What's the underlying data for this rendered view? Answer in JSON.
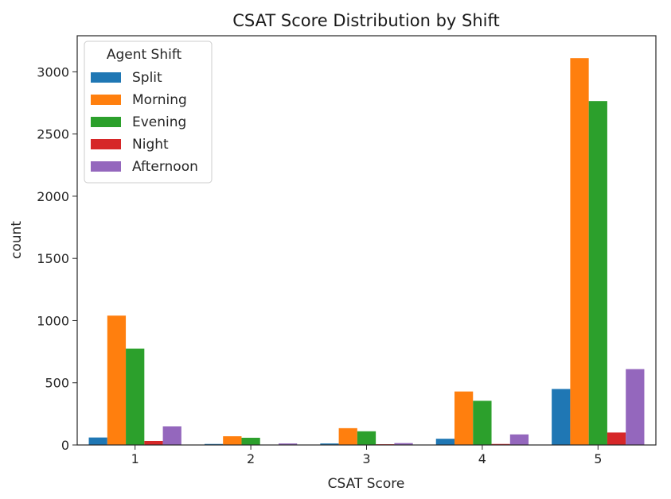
{
  "chart_data": {
    "type": "bar",
    "title": "CSAT Score Distribution by Shift",
    "xlabel": "CSAT Score",
    "ylabel": "count",
    "categories": [
      "1",
      "2",
      "3",
      "4",
      "5"
    ],
    "y_ticks": [
      "0",
      "500",
      "1000",
      "1500",
      "2000",
      "2500",
      "3000"
    ],
    "ylim": [
      0,
      3290
    ],
    "grid": false,
    "legend": {
      "title": "Agent Shift",
      "placement": "top-left"
    },
    "series": [
      {
        "name": "Split",
        "color": "#1f77b4",
        "values": [
          60,
          8,
          12,
          50,
          450
        ]
      },
      {
        "name": "Morning",
        "color": "#ff7f0e",
        "values": [
          1040,
          70,
          135,
          430,
          3110
        ]
      },
      {
        "name": "Evening",
        "color": "#2ca02c",
        "values": [
          775,
          58,
          110,
          355,
          2765
        ]
      },
      {
        "name": "Night",
        "color": "#d62728",
        "values": [
          32,
          3,
          6,
          8,
          100
        ]
      },
      {
        "name": "Afternoon",
        "color": "#9467bd",
        "values": [
          150,
          12,
          15,
          85,
          610
        ]
      }
    ]
  }
}
